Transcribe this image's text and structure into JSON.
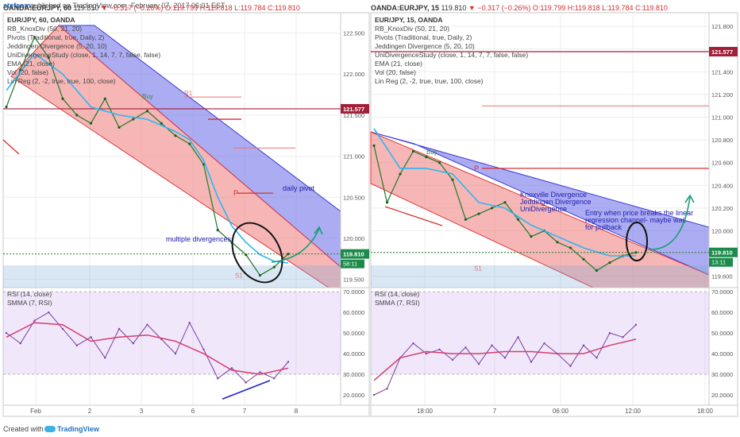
{
  "header": {
    "logo": "stefcom",
    "published": "published on TradingView.com, February 07, 2017 06:01 EST"
  },
  "footer": {
    "created_with": "Created with",
    "brand": "TradingView"
  },
  "panels": [
    {
      "ohlc_bar": {
        "symbol": "OANDA:EURJPY, 60",
        "close": "119.810",
        "change": "−0.317 (−0.26%)",
        "o": "O:119.799",
        "h": "H:119.818",
        "l": "L:119.784",
        "c": "C:119.810"
      },
      "symbol_title": "EUR/JPY, 60, OANDA",
      "indicators": [
        "RB_KnoxDiv (50, 21, 20)",
        "Pivots (Traditional, true, Daily, 2)",
        "Jeddingen Divergence (5, 20, 10)",
        "UniDivergenceStudy (close, 1, 14, 7, 7, false, false)",
        "EMA (21, close)",
        "Vol (20, false)",
        "Lin Reg (2, -2, true, true, 100, close)"
      ],
      "last_price": "119.810",
      "countdown": "58:11",
      "marker_price": "121.577",
      "rsi_title": "RSI (14, close)",
      "smma_title": "SMMA (7, RSI)",
      "annotations": {
        "daily_pivot": "daily pivot",
        "multiple_divergences": "multiple divergences",
        "r1": "R1",
        "p": "P",
        "s1": "S1",
        "buy": "Buy"
      }
    },
    {
      "ohlc_bar": {
        "symbol": "OANDA:EURJPY, 15",
        "close": "119.810",
        "change": "−0.317 (−0.26%)",
        "o": "O:119.799",
        "h": "H:119.818",
        "l": "L:119.784",
        "c": "C:119.810"
      },
      "symbol_title": "EUR/JPY, 15, OANDA",
      "indicators": [
        "RB_KnoxDiv (50, 21, 20)",
        "Pivots (Traditional, true, Daily, 2)",
        "Jeddingen Divergence (5, 20, 10)",
        "UniDivergenceStudy (close, 1, 14, 7, 7, false, false)",
        "EMA (21, close)",
        "Vol (20, false)",
        "Lin Reg (2, -2, true, true, 100, close)"
      ],
      "last_price": "119.810",
      "countdown": "13:11",
      "marker_price": "121.577",
      "rsi_title": "RSI (14, close)",
      "smma_title": "SMMA (7, RSI)",
      "annotations": {
        "knoxville": "Knoxville Divergence",
        "jeddingen": "Jeddingen Divergence",
        "unidiv": "UniDivergence",
        "entry": [
          "Entry when price breaks the linear",
          "regression channel- maybe wait",
          "for pullback"
        ],
        "p": "P",
        "s1": "S1",
        "buy": "Buy"
      }
    }
  ],
  "chart_data": [
    {
      "type": "line",
      "title": "EUR/JPY, 60, OANDA",
      "x_ticks": [
        "Feb",
        "2",
        "3",
        "6",
        "7",
        "8"
      ],
      "y_ticks": [
        "122.500",
        "122.000",
        "121.500",
        "121.000",
        "120.500",
        "120.000",
        "119.500"
      ],
      "ylim": [
        119.4,
        122.65
      ],
      "price_series": {
        "name": "EURJPY",
        "t": [
          0,
          5,
          10,
          15,
          20,
          25,
          30,
          35,
          40,
          45,
          50,
          55,
          60,
          65,
          70,
          75,
          80,
          85,
          90,
          95,
          100
        ],
        "y": [
          121.6,
          122.05,
          122.45,
          122.2,
          121.7,
          121.5,
          121.4,
          121.7,
          121.35,
          121.45,
          121.55,
          121.4,
          121.25,
          121.15,
          120.9,
          120.1,
          119.95,
          119.8,
          119.55,
          119.65,
          119.81
        ]
      },
      "ema_series": {
        "name": "EMA (21, close)",
        "t": [
          0,
          10,
          20,
          30,
          40,
          50,
          60,
          65,
          70,
          75,
          80,
          85,
          90,
          95,
          100
        ],
        "y": [
          121.8,
          122.25,
          122.0,
          121.6,
          121.5,
          121.45,
          121.3,
          121.2,
          120.95,
          120.5,
          120.15,
          119.95,
          119.8,
          119.72,
          119.7
        ]
      },
      "rsi_y_ticks": [
        "70.0000",
        "60.0000",
        "50.0000",
        "40.0000",
        "30.0000",
        "20.0000"
      ],
      "rsi_ylim": [
        15,
        72
      ],
      "rsi_series": {
        "name": "RSI (14, close)",
        "t": [
          0,
          5,
          10,
          15,
          20,
          25,
          30,
          35,
          40,
          45,
          50,
          55,
          60,
          65,
          70,
          75,
          80,
          85,
          90,
          95,
          100
        ],
        "y": [
          50,
          45,
          56,
          60,
          52,
          44,
          48,
          38,
          52,
          45,
          54,
          47,
          40,
          55,
          42,
          28,
          33,
          26,
          31,
          28,
          36
        ]
      },
      "smma_series": {
        "name": "SMMA (7, RSI)",
        "t": [
          0,
          10,
          20,
          30,
          40,
          50,
          60,
          70,
          80,
          90,
          100
        ],
        "y": [
          48,
          55,
          54,
          46,
          48,
          49,
          46,
          40,
          32,
          30,
          33
        ]
      }
    },
    {
      "type": "line",
      "title": "EUR/JPY, 15, OANDA",
      "x_ticks": [
        "18:00",
        "7",
        "06:00",
        "12:00",
        "18:00"
      ],
      "y_ticks": [
        "121.800",
        "121.600",
        "121.400",
        "121.200",
        "121.000",
        "120.800",
        "120.600",
        "120.400",
        "120.200",
        "120.000",
        "119.800",
        "119.600"
      ],
      "ylim": [
        119.5,
        121.85
      ],
      "price_series": {
        "name": "EURJPY",
        "t": [
          0,
          5,
          10,
          15,
          20,
          25,
          30,
          35,
          40,
          45,
          50,
          55,
          60,
          65,
          70,
          75,
          80,
          85,
          90,
          95,
          100
        ],
        "y": [
          120.75,
          120.25,
          120.5,
          120.7,
          120.65,
          120.6,
          120.45,
          120.1,
          120.15,
          120.2,
          120.25,
          120.1,
          119.95,
          120.0,
          119.9,
          119.85,
          119.75,
          119.65,
          119.72,
          119.78,
          119.81
        ]
      },
      "ema_series": {
        "name": "EMA (21, close)",
        "t": [
          0,
          10,
          20,
          30,
          40,
          50,
          60,
          70,
          80,
          90,
          100
        ],
        "y": [
          120.9,
          120.55,
          120.55,
          120.5,
          120.25,
          120.2,
          120.05,
          119.95,
          119.85,
          119.78,
          119.78
        ]
      },
      "rsi_y_ticks": [
        "70.0000",
        "60.0000",
        "50.0000",
        "40.0000",
        "30.0000",
        "20.0000"
      ],
      "rsi_ylim": [
        15,
        72
      ],
      "rsi_series": {
        "name": "RSI (14, close)",
        "t": [
          0,
          5,
          10,
          15,
          20,
          25,
          30,
          35,
          40,
          45,
          50,
          55,
          60,
          65,
          70,
          75,
          80,
          85,
          90,
          95,
          100
        ],
        "y": [
          20,
          23,
          38,
          45,
          40,
          42,
          37,
          43,
          35,
          44,
          38,
          48,
          36,
          45,
          40,
          34,
          44,
          38,
          50,
          48,
          54
        ]
      },
      "smma_series": {
        "name": "SMMA (7, RSI)",
        "t": [
          0,
          10,
          20,
          30,
          40,
          50,
          60,
          70,
          80,
          90,
          100
        ],
        "y": [
          27,
          38,
          41,
          40,
          40,
          41,
          41,
          40,
          40,
          44,
          47
        ]
      }
    }
  ]
}
